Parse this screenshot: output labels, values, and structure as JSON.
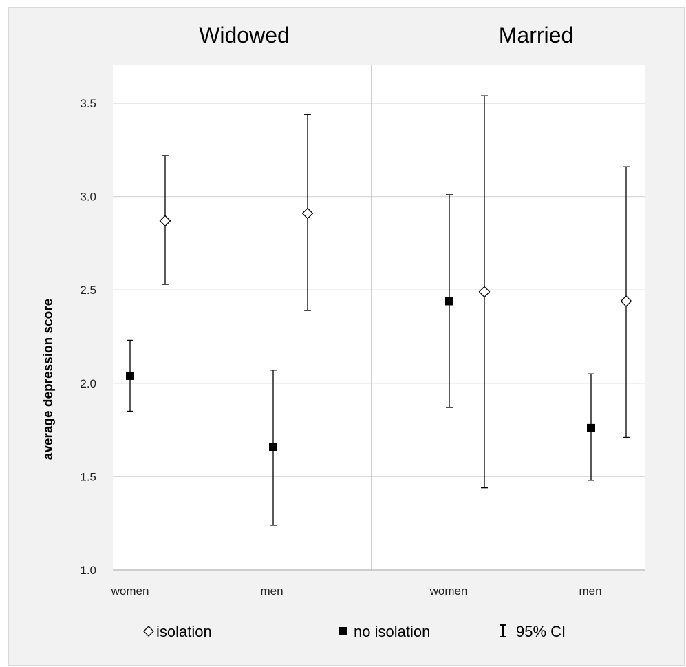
{
  "chart_data": {
    "type": "scatter",
    "ylabel": "average depression score",
    "ylim": [
      1.0,
      3.7
    ],
    "yticks": [
      "1.0",
      "1.5",
      "2.0",
      "2.5",
      "3.0",
      "3.5"
    ],
    "grid": true,
    "legend_position": "bottom",
    "panels": [
      {
        "title": "Widowed",
        "categories": [
          "women",
          "men"
        ]
      },
      {
        "title": "Married",
        "categories": [
          "women",
          "men"
        ]
      }
    ],
    "series": [
      {
        "name": "isolation",
        "marker": "diamond-open",
        "points": [
          {
            "panel": "Widowed",
            "category": "women",
            "value": 2.87,
            "ci_low": 2.53,
            "ci_high": 3.22
          },
          {
            "panel": "Widowed",
            "category": "men",
            "value": 2.91,
            "ci_low": 2.39,
            "ci_high": 3.44
          },
          {
            "panel": "Married",
            "category": "women",
            "value": 2.49,
            "ci_low": 1.44,
            "ci_high": 3.54
          },
          {
            "panel": "Married",
            "category": "men",
            "value": 2.44,
            "ci_low": 1.71,
            "ci_high": 3.16
          }
        ]
      },
      {
        "name": "no isolation",
        "marker": "square-filled",
        "points": [
          {
            "panel": "Widowed",
            "category": "women",
            "value": 2.04,
            "ci_low": 1.85,
            "ci_high": 2.23
          },
          {
            "panel": "Widowed",
            "category": "men",
            "value": 1.66,
            "ci_low": 1.24,
            "ci_high": 2.07
          },
          {
            "panel": "Married",
            "category": "women",
            "value": 2.44,
            "ci_low": 1.87,
            "ci_high": 3.01
          },
          {
            "panel": "Married",
            "category": "men",
            "value": 1.76,
            "ci_low": 1.48,
            "ci_high": 2.05
          }
        ]
      }
    ],
    "legend": {
      "isolation_label": "isolation",
      "no_isolation_label": "no isolation",
      "ci_label": "95% CI"
    },
    "colors": {
      "plot_background": "#ffffff",
      "frame_background": "#f2f2f2",
      "gridline": "#d9d9d9",
      "marker": "#000000"
    }
  }
}
